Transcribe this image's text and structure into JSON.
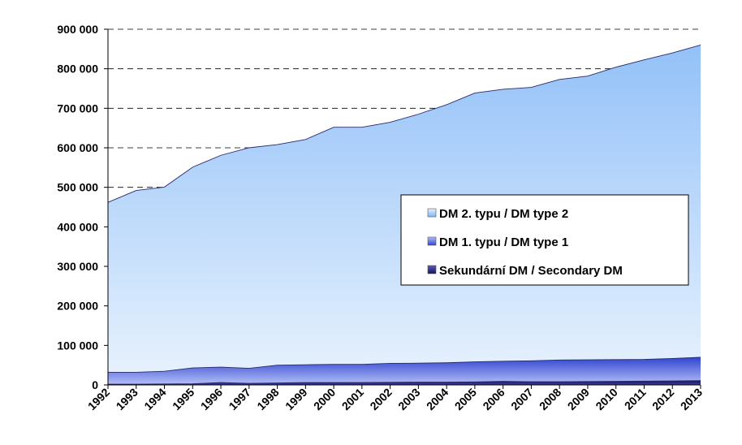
{
  "chart_data": {
    "type": "area",
    "stacked": true,
    "x": [
      "1992",
      "1993",
      "1994",
      "1995",
      "1996",
      "1997",
      "1998",
      "1999",
      "2000",
      "2001",
      "2002",
      "2003",
      "2004",
      "2005",
      "2006",
      "2007",
      "2008",
      "2009",
      "2010",
      "2011",
      "2012",
      "2013"
    ],
    "series": [
      {
        "name": "Sekundární DM / Secondary DM",
        "color": "#1a1a6e",
        "values": [
          2000,
          2000,
          2500,
          3000,
          6000,
          4000,
          5000,
          6000,
          6000,
          6000,
          6500,
          7000,
          7000,
          7500,
          9000,
          8000,
          8000,
          8500,
          9000,
          9500,
          10000,
          11000
        ]
      },
      {
        "name": "DM 1. typu / DM type 1",
        "color": "#3a4fd8",
        "values": [
          30000,
          30000,
          32000,
          40000,
          39000,
          38000,
          45000,
          45000,
          46000,
          46000,
          48000,
          48000,
          49000,
          51000,
          51000,
          53000,
          55000,
          55000,
          55000,
          55000,
          57000,
          59000
        ]
      },
      {
        "name": "DM 2. typu / DM type 2",
        "color": "#9cc8fb",
        "values": [
          430000,
          460000,
          466000,
          508000,
          536000,
          558000,
          558000,
          570000,
          600000,
          600000,
          610000,
          630000,
          653000,
          680000,
          688000,
          692000,
          710000,
          718000,
          740000,
          758000,
          773000,
          790000
        ]
      }
    ],
    "totals": [
      462000,
      492000,
      500500,
      551000,
      581000,
      600000,
      608000,
      621000,
      652000,
      652000,
      664500,
      685000,
      709000,
      738500,
      748000,
      753000,
      773000,
      781500,
      804000,
      822500,
      840000,
      860000
    ],
    "y_ticks": [
      "0",
      "100 000",
      "200 000",
      "300 000",
      "400 000",
      "500 000",
      "600 000",
      "700 000",
      "800 000",
      "900 000"
    ],
    "ylim": [
      0,
      900000
    ],
    "grid": "horizontal dashed",
    "legend_position": "center-right",
    "title": "",
    "xlabel": "",
    "ylabel": ""
  }
}
